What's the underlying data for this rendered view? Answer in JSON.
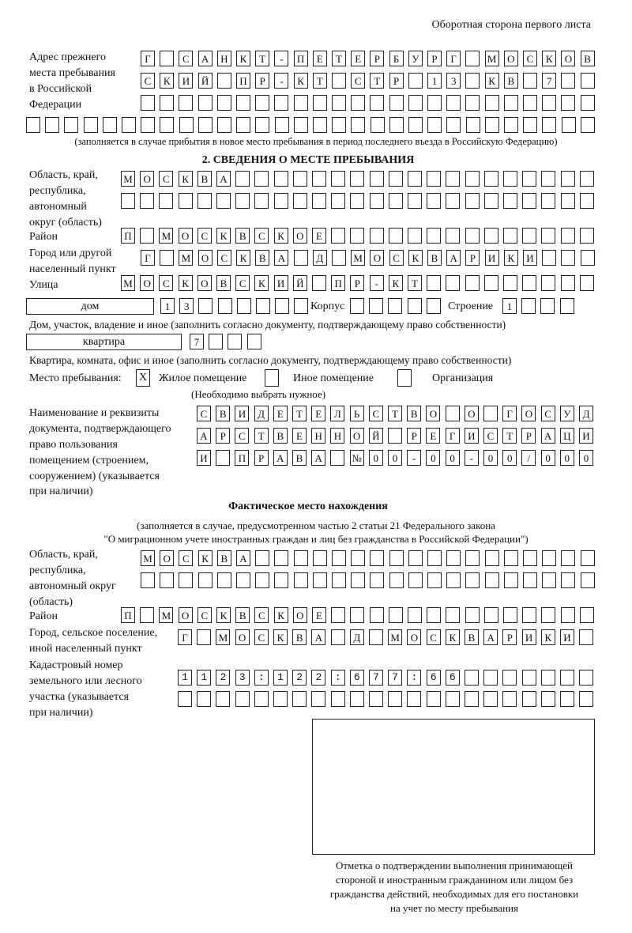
{
  "header": "Оборотная сторона первого листа",
  "prev_address": {
    "label": [
      "Адрес прежнего",
      "места пребывания",
      "в Российской",
      "Федерации"
    ],
    "rows": [
      "Г САНКТ-ПЕТЕРБУРГ МОСКОВ",
      "СКИЙ ПР-КТ СТР 13 КВ 7",
      "",
      ""
    ],
    "note": "(заполняется в случае прибытия в новое место пребывания в период последнего въезда в Российскую Федерацию)"
  },
  "section2": {
    "title": "2. СВЕДЕНИЯ О МЕСТЕ ПРЕБЫВАНИЯ",
    "region_label": [
      "Область, край,",
      "республика,",
      "автономный",
      "округ (область)"
    ],
    "region_rows": [
      "МОСКВА",
      ""
    ],
    "district_label": "Район",
    "district": "П МОСКВСКОЕ",
    "city_label": [
      "Город или другой",
      "населенный пункт"
    ],
    "city": "Г МОСКВА Д МОСКВАРИКИ",
    "street_label": "Улица",
    "street": "МОСКОВСКИЙ ПР-КТ",
    "house_type": "дом",
    "house": "13",
    "korpus_label": "Корпус",
    "korpus": "",
    "building_label": "Строение",
    "building": "1",
    "house_note": "Дом, участок, владение и иное (заполнить согласно документу, подтверждающему право собственности)",
    "flat_type": "квартира",
    "flat": "7",
    "flat_note": "Квартира, комната, офис и иное (заполнить согласно документу, подтверждающему право собственности)",
    "place_label": "Место пребывания:",
    "place_options": [
      {
        "label": "Жилое помещение",
        "mark": "X"
      },
      {
        "label": "Иное помещение",
        "mark": ""
      },
      {
        "label": "Организация",
        "mark": ""
      }
    ],
    "place_note": "(Необходимо выбрать нужное)",
    "doc_label": [
      "Наименование и реквизиты",
      "документа, подтверждающего",
      "право пользования",
      "помещением (строением,",
      "сооружением) (указывается",
      "при наличии)"
    ],
    "doc_rows": [
      "СВИДЕТЕЛЬСТВО О ГОСУД",
      "АРСТВЕННОЙ РЕГИСТРАЦИ",
      "И ПРАВА №00-00-00/000"
    ]
  },
  "actual": {
    "title": "Фактическое место нахождения",
    "note": [
      "(заполняется в случае, предусмотренном частью 2 статьи 21 Федерального закона",
      "\"О миграционном учете иностранных граждан и лиц без гражданства в Российской Федерации\")"
    ],
    "region_label": [
      "Область, край,",
      "республика,",
      "автономный округ",
      "(область)"
    ],
    "region_rows": [
      "МОСКВА",
      ""
    ],
    "district_label": "Район",
    "district": "П МОСКВСКОЕ",
    "city_label": [
      "Город, сельское поселение,",
      "иной населенный пункт"
    ],
    "city": "Г МОСКВА Д МОСКВАРИКИ",
    "cadastre_label": [
      "Кадастровый номер",
      "земельного или лесного",
      "участка (указывается",
      "при наличии)"
    ],
    "cadastre_rows": [
      "1123:122:677:66",
      ""
    ]
  },
  "stamp_caption": [
    "Отметка о подтверждении выполнения принимающей",
    "стороной и иностранным гражданином или лицом без",
    "гражданства действий, необходимых для его постановки",
    "на учет по месту пребывания"
  ]
}
